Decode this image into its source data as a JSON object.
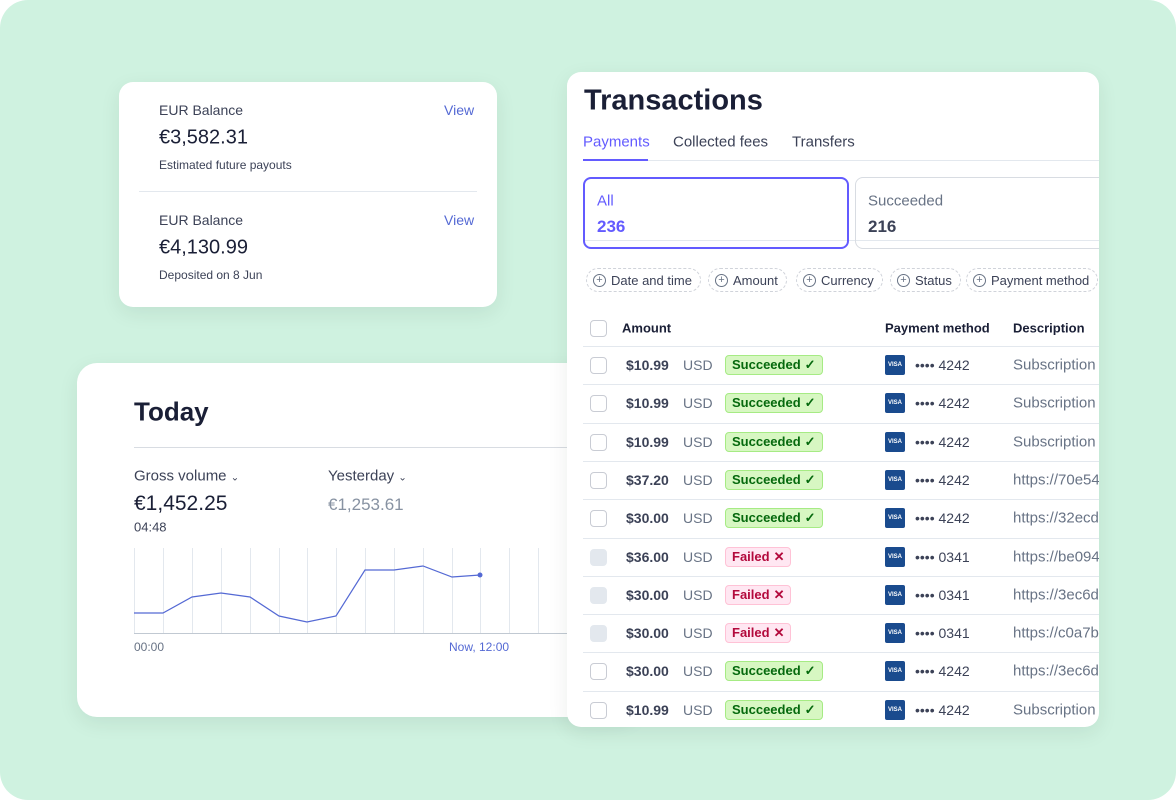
{
  "balances": [
    {
      "label": "EUR Balance",
      "link": "View",
      "amount": "€3,582.31",
      "note": "Estimated future payouts"
    },
    {
      "label": "EUR Balance",
      "link": "View",
      "amount": "€4,130.99",
      "note": "Deposited on 8 Jun"
    }
  ],
  "today": {
    "title": "Today",
    "metric": "Gross volume",
    "value": "€1,452.25",
    "time": "04:48",
    "compare": "Yesterday",
    "compare_value": "€1,253.61",
    "x_start": "00:00",
    "x_end": "Now, 12:00"
  },
  "transactions": {
    "title": "Transactions",
    "tabs": [
      "Payments",
      "Collected fees",
      "Transfers"
    ],
    "summary": [
      {
        "label": "All",
        "count": 236
      },
      {
        "label": "Succeeded",
        "count": 216
      }
    ],
    "filters": [
      "Date and time",
      "Amount",
      "Currency",
      "Status",
      "Payment method"
    ],
    "columns": [
      "Amount",
      "Payment method",
      "Description"
    ],
    "rows": [
      {
        "amount": "$10.99",
        "currency": "USD",
        "status": "Succeeded",
        "card": "•••• 4242",
        "description": "Subscription"
      },
      {
        "amount": "$10.99",
        "currency": "USD",
        "status": "Succeeded",
        "card": "•••• 4242",
        "description": "Subscription"
      },
      {
        "amount": "$10.99",
        "currency": "USD",
        "status": "Succeeded",
        "card": "•••• 4242",
        "description": "Subscription"
      },
      {
        "amount": "$37.20",
        "currency": "USD",
        "status": "Succeeded",
        "card": "•••• 4242",
        "description": "https://70e54"
      },
      {
        "amount": "$30.00",
        "currency": "USD",
        "status": "Succeeded",
        "card": "•••• 4242",
        "description": "https://32ecd"
      },
      {
        "amount": "$36.00",
        "currency": "USD",
        "status": "Failed",
        "card": "•••• 0341",
        "description": "https://be094"
      },
      {
        "amount": "$30.00",
        "currency": "USD",
        "status": "Failed",
        "card": "•••• 0341",
        "description": "https://3ec6d"
      },
      {
        "amount": "$30.00",
        "currency": "USD",
        "status": "Failed",
        "card": "•••• 0341",
        "description": "https://c0a7b"
      },
      {
        "amount": "$30.00",
        "currency": "USD",
        "status": "Succeeded",
        "card": "•••• 4242",
        "description": "https://3ec6d"
      },
      {
        "amount": "$10.99",
        "currency": "USD",
        "status": "Succeeded",
        "card": "•••• 4242",
        "description": "Subscription"
      }
    ]
  }
}
